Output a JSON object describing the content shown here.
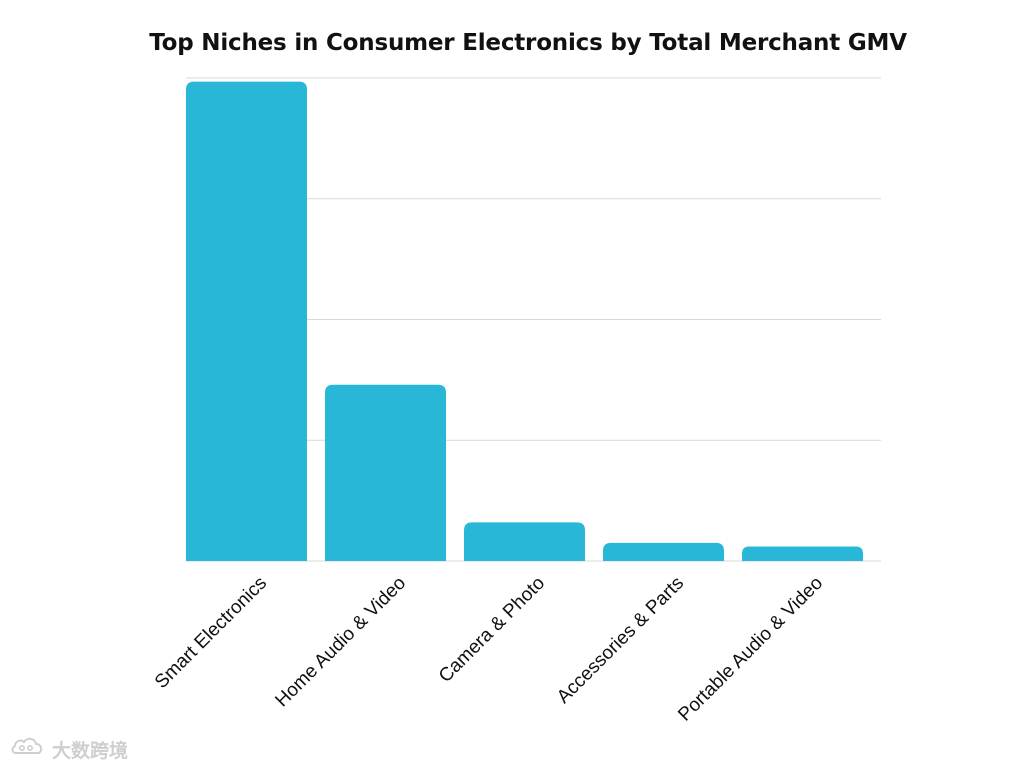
{
  "chart_data": {
    "type": "bar",
    "title": "Top Niches in Consumer Electronics by Total Merchant GMV",
    "xlabel": "",
    "ylabel": "",
    "categories": [
      "Smart Electronics",
      "Home Audio & Video",
      "Camera & Photo",
      "Accessories & Parts",
      "Portable Audio & Video"
    ],
    "values": [
      3.97,
      1.46,
      0.32,
      0.15,
      0.12
    ],
    "ylim": [
      0,
      4
    ],
    "y_ticks_shown": false,
    "grid": true,
    "bar_color": "#29b7d7"
  },
  "watermark": {
    "text": "大数跨境",
    "icon": "cloud-logo-icon"
  }
}
